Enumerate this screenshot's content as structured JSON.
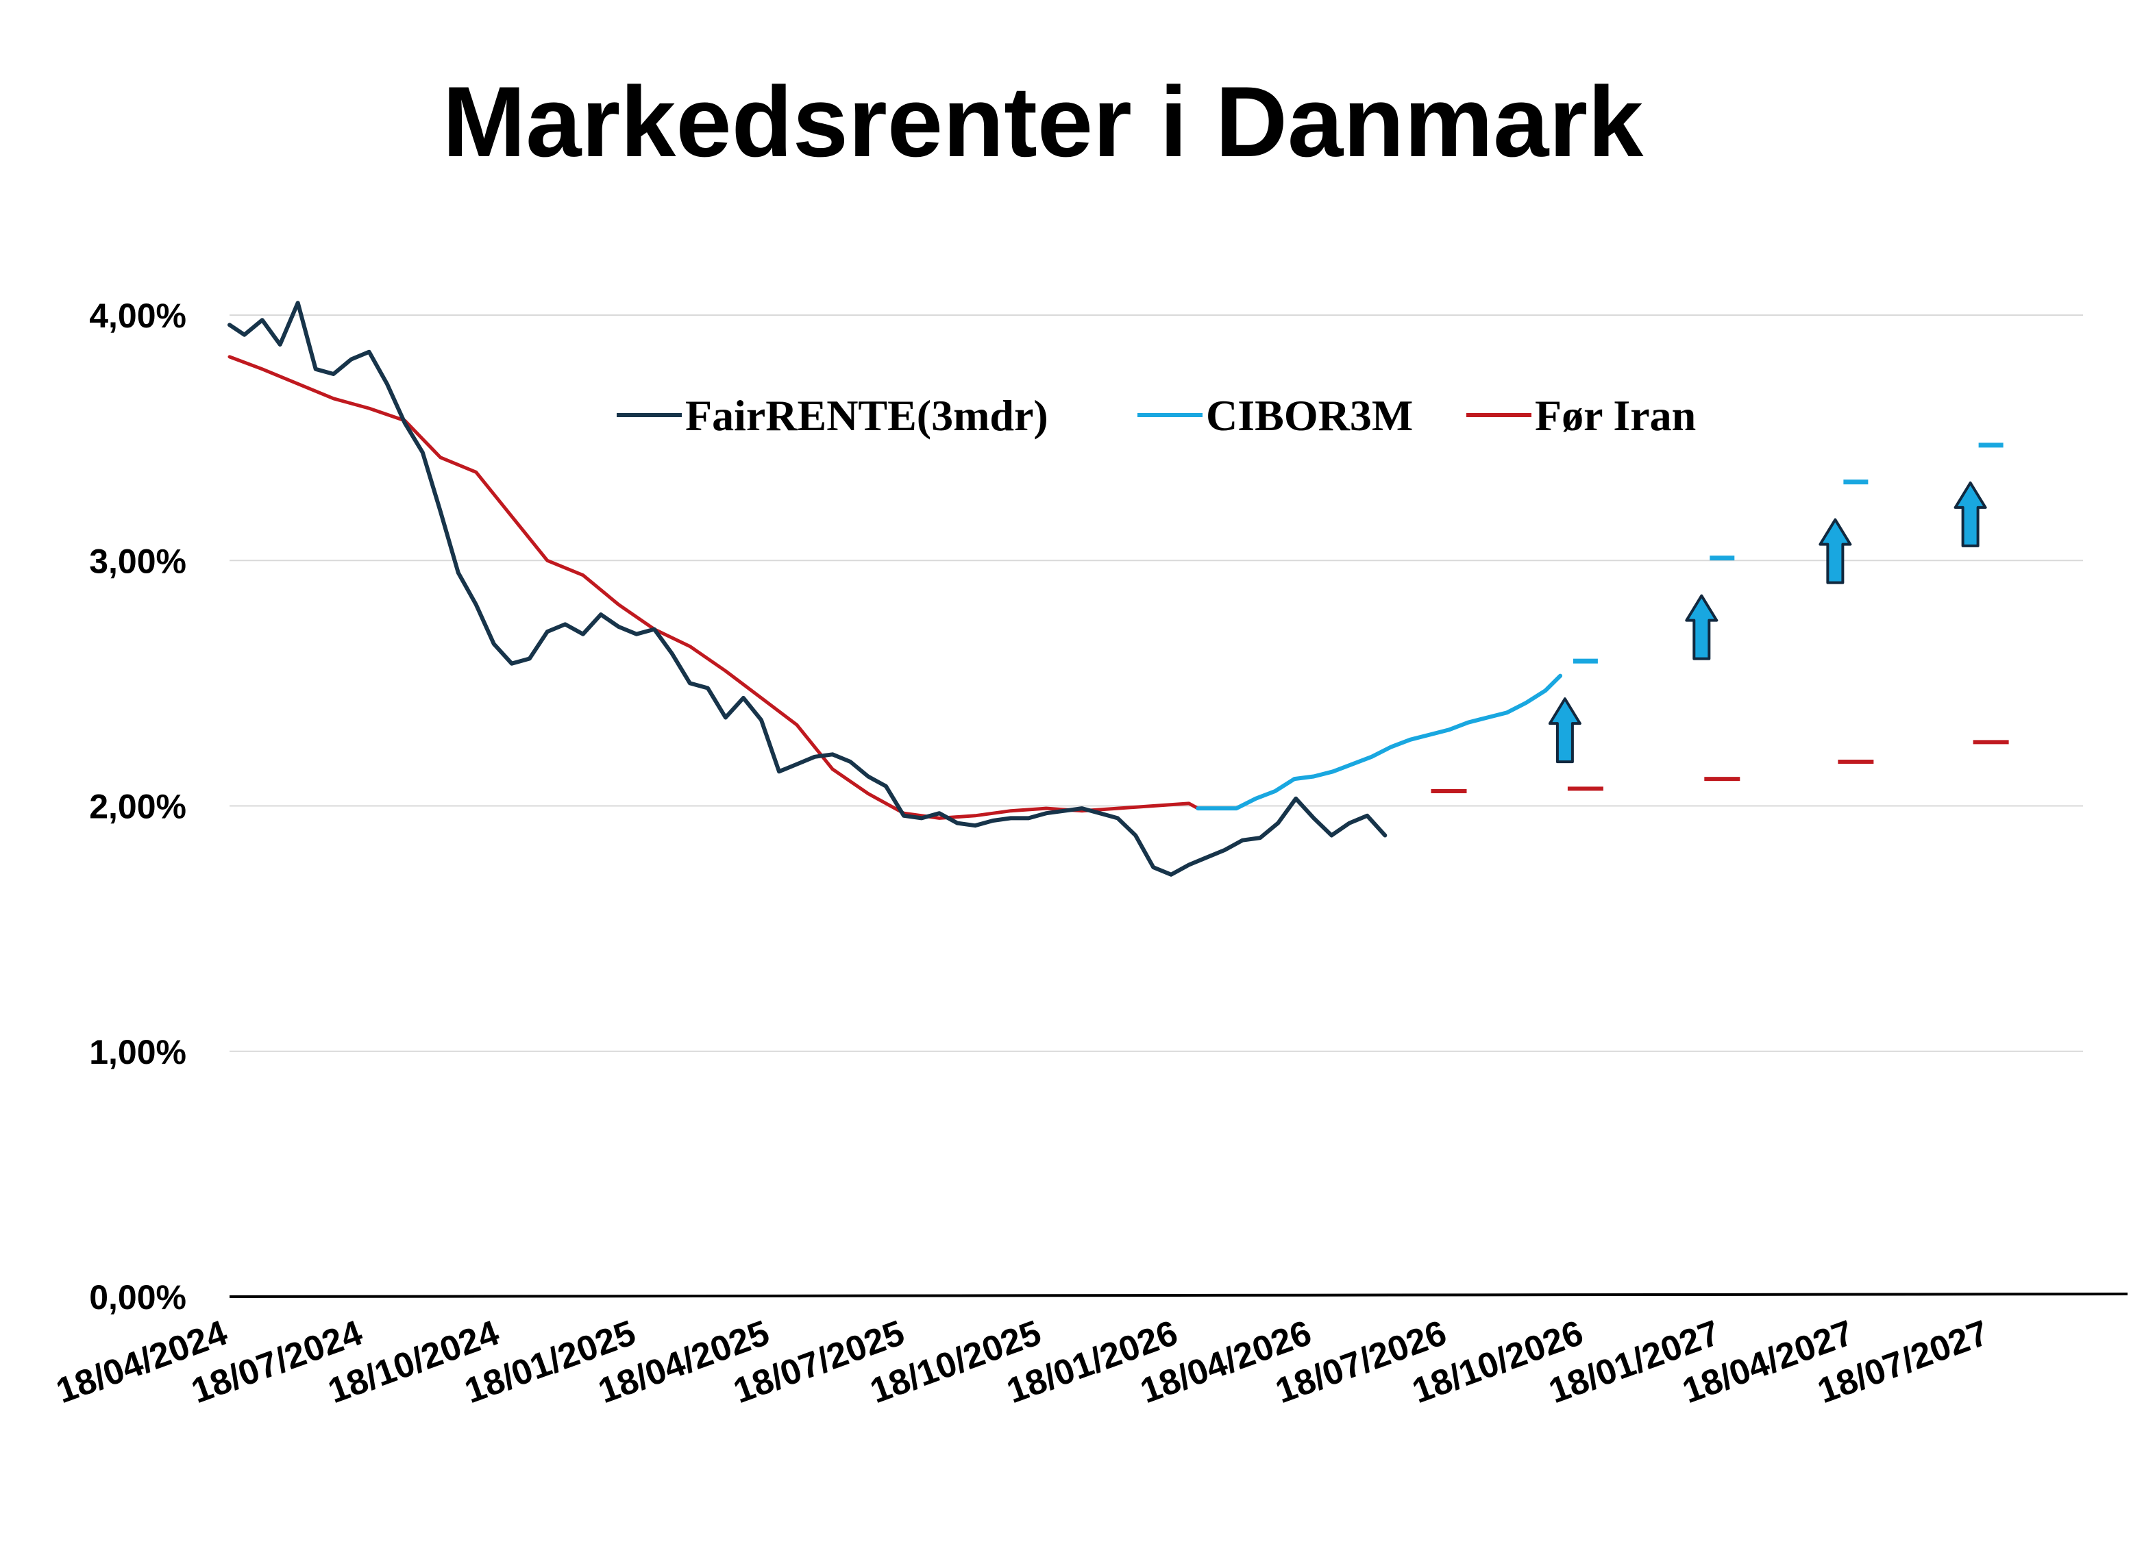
{
  "chart_data": {
    "type": "line",
    "title": "Markedsrenter i Danmark",
    "xlabel": "",
    "ylabel": "",
    "ylim": [
      0,
      4.0
    ],
    "xlim": [
      "2024-04-18",
      "2027-09-18"
    ],
    "y_ticks": [
      "0,00%",
      "1,00%",
      "2,00%",
      "3,00%",
      "4,00%"
    ],
    "x_ticks": [
      "18/04/2024",
      "18/07/2024",
      "18/10/2024",
      "18/01/2025",
      "18/04/2025",
      "18/07/2025",
      "18/10/2025",
      "18/01/2026",
      "18/04/2026",
      "18/07/2026",
      "18/10/2026",
      "18/01/2027",
      "18/04/2027",
      "18/07/2027"
    ],
    "grid": true,
    "legend_position": "top-center",
    "colors": {
      "fairrente": "#17344a",
      "cibor": "#19a7e0",
      "foer_iran": "#c0191f",
      "arrow_fill": "#19a7e0",
      "arrow_stroke": "#12283e"
    },
    "series": [
      {
        "name": "FairRENTE(3mdr)",
        "x": [
          "2024-04-18",
          "2024-04-28",
          "2024-05-10",
          "2024-05-22",
          "2024-06-03",
          "2024-06-15",
          "2024-06-27",
          "2024-07-09",
          "2024-07-21",
          "2024-08-02",
          "2024-08-14",
          "2024-08-26",
          "2024-09-07",
          "2024-09-19",
          "2024-10-01",
          "2024-10-13",
          "2024-10-25",
          "2024-11-06",
          "2024-11-18",
          "2024-11-30",
          "2024-12-12",
          "2024-12-24",
          "2025-01-05",
          "2025-01-17",
          "2025-01-29",
          "2025-02-10",
          "2025-02-22",
          "2025-03-06",
          "2025-03-18",
          "2025-03-30",
          "2025-04-11",
          "2025-04-23",
          "2025-05-05",
          "2025-05-17",
          "2025-05-29",
          "2025-06-10",
          "2025-06-22",
          "2025-07-04",
          "2025-07-16",
          "2025-07-28",
          "2025-08-09",
          "2025-08-21",
          "2025-09-02",
          "2025-09-14",
          "2025-09-26",
          "2025-10-08",
          "2025-10-20",
          "2025-11-01",
          "2025-11-13",
          "2025-11-25",
          "2025-12-07",
          "2025-12-19",
          "2025-12-31",
          "2026-01-12",
          "2026-01-24",
          "2026-02-05",
          "2026-02-17",
          "2026-03-01",
          "2026-03-13",
          "2026-03-25",
          "2026-04-06",
          "2026-04-18",
          "2026-04-30",
          "2026-05-12",
          "2026-05-24",
          "2026-06-05"
        ],
        "values": [
          3.96,
          3.92,
          3.98,
          3.88,
          4.05,
          3.78,
          3.76,
          3.82,
          3.85,
          3.72,
          3.56,
          3.44,
          3.2,
          2.95,
          2.82,
          2.66,
          2.58,
          2.6,
          2.71,
          2.74,
          2.7,
          2.78,
          2.73,
          2.7,
          2.72,
          2.62,
          2.5,
          2.48,
          2.36,
          2.44,
          2.35,
          2.14,
          2.17,
          2.2,
          2.21,
          2.18,
          2.12,
          2.08,
          1.96,
          1.95,
          1.97,
          1.93,
          1.92,
          1.94,
          1.95,
          1.95,
          1.97,
          1.98,
          1.99,
          1.97,
          1.95,
          1.88,
          1.75,
          1.72,
          1.76,
          1.79,
          1.82,
          1.86,
          1.87,
          1.93,
          2.03,
          1.95,
          1.88,
          1.93,
          1.96,
          1.88
        ]
      },
      {
        "name": "CIBOR3M",
        "x": [
          "2026-01-30",
          "2026-02-12",
          "2026-02-25",
          "2026-03-10",
          "2026-03-23",
          "2026-04-05",
          "2026-04-18",
          "2026-05-01",
          "2026-05-14",
          "2026-05-27",
          "2026-06-09",
          "2026-06-22",
          "2026-07-05",
          "2026-07-18",
          "2026-07-31",
          "2026-08-13",
          "2026-08-26",
          "2026-09-08",
          "2026-09-21",
          "2026-10-01"
        ],
        "values": [
          1.99,
          1.99,
          1.99,
          2.03,
          2.06,
          2.11,
          2.12,
          2.14,
          2.17,
          2.2,
          2.24,
          2.27,
          2.29,
          2.31,
          2.34,
          2.36,
          2.38,
          2.42,
          2.47,
          2.53
        ]
      },
      {
        "name": "Før Iran",
        "x": [
          "2024-04-18",
          "2024-05-10",
          "2024-06-03",
          "2024-06-27",
          "2024-07-21",
          "2024-08-14",
          "2024-09-07",
          "2024-10-01",
          "2024-10-25",
          "2024-11-18",
          "2024-12-12",
          "2025-01-05",
          "2025-01-29",
          "2025-02-22",
          "2025-03-18",
          "2025-04-11",
          "2025-05-05",
          "2025-05-29",
          "2025-06-22",
          "2025-07-16",
          "2025-08-09",
          "2025-09-02",
          "2025-09-26",
          "2025-10-20",
          "2025-11-13",
          "2025-12-07",
          "2025-12-31",
          "2026-01-24",
          "2026-01-30"
        ],
        "values": [
          3.83,
          3.78,
          3.72,
          3.66,
          3.62,
          3.57,
          3.42,
          3.36,
          3.18,
          3.0,
          2.94,
          2.82,
          2.72,
          2.65,
          2.55,
          2.44,
          2.33,
          2.15,
          2.05,
          1.97,
          1.95,
          1.96,
          1.98,
          1.99,
          1.98,
          1.99,
          2.0,
          2.01,
          1.99
        ]
      }
    ],
    "forecast_markers": [
      {
        "x": "2026-07-18",
        "cibor": null,
        "foer_iran": 2.06,
        "arrow": false
      },
      {
        "x": "2026-10-18",
        "cibor": 2.59,
        "foer_iran": 2.07,
        "arrow": true
      },
      {
        "x": "2027-01-18",
        "cibor": 3.01,
        "foer_iran": 2.11,
        "arrow": true
      },
      {
        "x": "2027-04-18",
        "cibor": 3.32,
        "foer_iran": 2.18,
        "arrow": true
      },
      {
        "x": "2027-07-18",
        "cibor": 3.47,
        "foer_iran": 2.26,
        "arrow": true
      }
    ]
  }
}
